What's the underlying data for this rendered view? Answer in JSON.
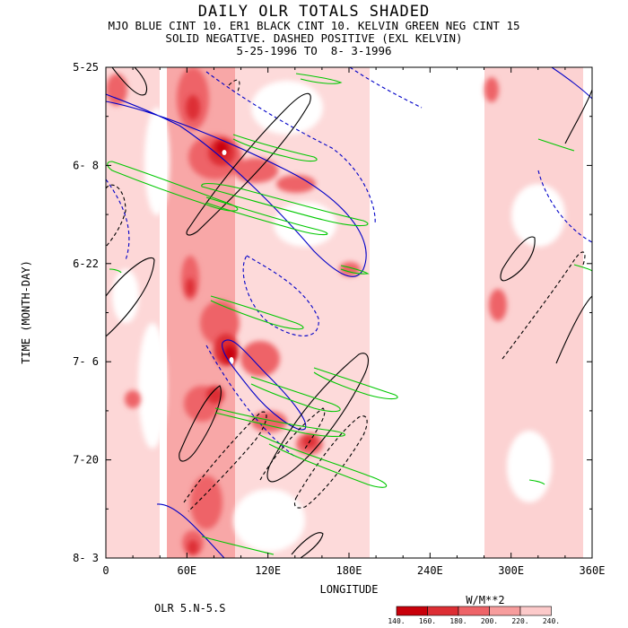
{
  "chart_data": {
    "type": "heatmap",
    "title": "DAILY OLR TOTALS SHADED",
    "subtitle_lines": [
      "MJO BLUE CINT 10. ER1 BLACK CINT 10. KELVIN GREEN NEG CINT 15",
      "SOLID NEGATIVE. DASHED POSITIVE (EXL KELVIN)",
      "5-25-1996 TO  8- 3-1996"
    ],
    "xlabel": "LONGITUDE",
    "ylabel": "TIME (MONTH-DAY)",
    "x_ticks": [
      "0",
      "60E",
      "120E",
      "180E",
      "240E",
      "300E",
      "360E"
    ],
    "x_tick_values": [
      0,
      60,
      120,
      180,
      240,
      300,
      360
    ],
    "xlim": [
      0,
      360
    ],
    "y_ticks": [
      "5-25",
      "6- 8",
      "6-22",
      "7- 6",
      "7-20",
      "8- 3"
    ],
    "y_tick_days": [
      0,
      14,
      28,
      42,
      56,
      70
    ],
    "ylim_days": [
      0,
      70
    ],
    "region_label": "OLR 5.N-5.S",
    "colorbar": {
      "unit": "W/M**2",
      "levels": [
        "140.",
        "160.",
        "180.",
        "200.",
        "220.",
        "240."
      ],
      "colors": [
        "#c8000a",
        "#dd2e34",
        "#ee6468",
        "#f79d9d",
        "#fccaca"
      ]
    },
    "series_colors": {
      "mjo": "#0000c8",
      "er": "#000000",
      "kelvin": "#00c800"
    },
    "low_olr_regions": [
      {
        "lon_start": 0,
        "lon_end": 30,
        "day_start": 0,
        "day_end": 70,
        "level": 200
      },
      {
        "lon_start": 45,
        "lon_end": 110,
        "day_start": 0,
        "day_end": 70,
        "level": 180
      },
      {
        "lon_start": 70,
        "lon_end": 105,
        "day_start": 6,
        "day_end": 18,
        "level": 140
      },
      {
        "lon_start": 65,
        "lon_end": 100,
        "day_start": 34,
        "day_end": 50,
        "level": 140
      },
      {
        "lon_start": 110,
        "lon_end": 200,
        "day_start": 0,
        "day_end": 70,
        "level": 220
      },
      {
        "lon_start": 275,
        "lon_end": 345,
        "day_start": 0,
        "day_end": 70,
        "level": 220
      }
    ]
  }
}
